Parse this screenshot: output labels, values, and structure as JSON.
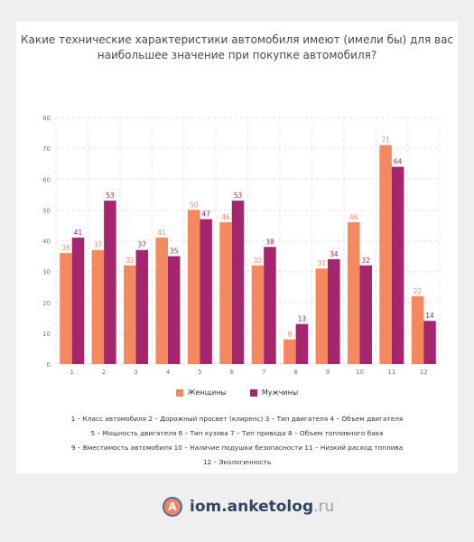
{
  "title_lines": [
    "Какие технические характеристики автомобиля имеют (имели бы) для вас",
    "наибольшее значение при покупке автомобиля?"
  ],
  "colors": {
    "women": "#f4895f",
    "men": "#a5256f",
    "grid": "#e3e3e3",
    "axis_text": "#777777"
  },
  "legend": {
    "women": "Женщины",
    "men": "Мужчины"
  },
  "key_lines": [
    "1 – Класс автомобиля    2 – Дорожный просвет (клиренс)    3 – Тип двигателя    4 – Объем двигателя",
    "5 – Мощность двигателя    6 – Тип кузова    7 – Тип привода    8 – Объем топливного бака",
    "9 – Вместимость автомобиля    10 – Наличие подушки безопасности    11 – Низкий расход топлива",
    "12 – Экологичность"
  ],
  "brand": {
    "logo_letter": "A",
    "name": "iom.anketolog",
    "suffix": ".ru"
  },
  "chart_data": {
    "type": "bar",
    "categories": [
      "1",
      "2",
      "3",
      "4",
      "5",
      "6",
      "7",
      "8",
      "9",
      "10",
      "11",
      "12"
    ],
    "series": [
      {
        "name": "Женщины",
        "values": [
          36,
          37,
          32,
          41,
          50,
          46,
          32,
          8,
          31,
          46,
          71,
          22
        ]
      },
      {
        "name": "Мужчины",
        "values": [
          41,
          53,
          37,
          35,
          47,
          53,
          38,
          13,
          34,
          32,
          64,
          14
        ]
      }
    ],
    "ylim": [
      0,
      80
    ],
    "yticks": [
      0,
      10,
      20,
      30,
      40,
      50,
      60,
      70,
      80
    ],
    "grid": true,
    "legend_position": "bottom",
    "data_labels": true
  }
}
